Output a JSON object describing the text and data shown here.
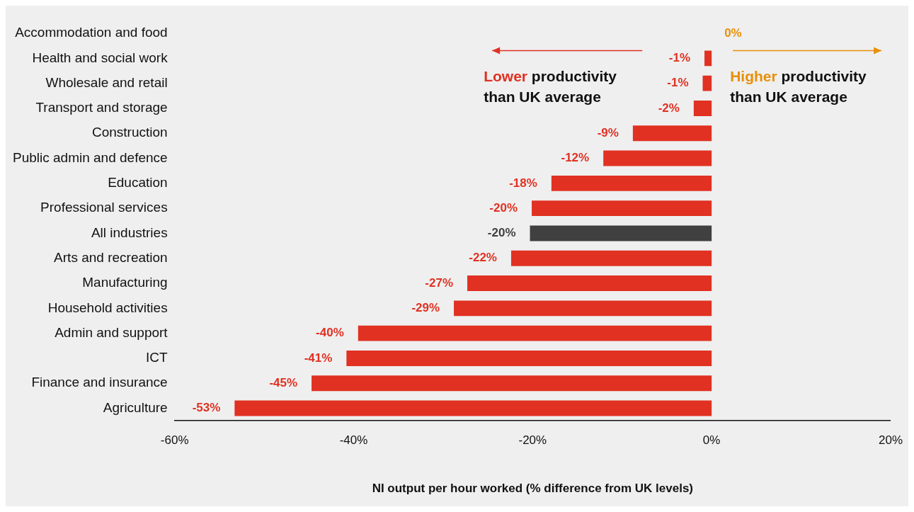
{
  "chart_data": {
    "type": "bar",
    "orientation": "horizontal",
    "xlabel": "NI output per hour worked (% difference from UK levels)",
    "categories": [
      "Accommodation and food",
      "Health and social work",
      "Wholesale and retail",
      "Transport and storage",
      "Construction",
      "Public admin and defence",
      "Education",
      "Professional services",
      "All industries",
      "Arts and recreation",
      "Manufacturing",
      "Household activities",
      "Admin and support",
      "ICT",
      "Finance and insurance",
      "Agriculture"
    ],
    "values": [
      0,
      -0.8,
      -1.0,
      -2.0,
      -8.8,
      -12.1,
      -17.9,
      -20.1,
      -20.3,
      -22.4,
      -27.3,
      -28.8,
      -39.5,
      -40.8,
      -44.7,
      -53.3
    ],
    "value_labels": [
      "0%",
      "-1%",
      "-1%",
      "-2%",
      "-9%",
      "-12%",
      "-18%",
      "-20%",
      "-20%",
      "-22%",
      "-27%",
      "-29%",
      "-40%",
      "-41%",
      "-45%",
      "-53%"
    ],
    "colors": [
      "#e8900a",
      "#e03122",
      "#e03122",
      "#e03122",
      "#e03122",
      "#e03122",
      "#e03122",
      "#e03122",
      "#404040",
      "#e03122",
      "#e03122",
      "#e03122",
      "#e03122",
      "#e03122",
      "#e03122",
      "#e03122"
    ],
    "xlim": [
      -60,
      20
    ],
    "xticks": [
      {
        "value": -60,
        "label": "-60%"
      },
      {
        "value": -40,
        "label": "-40%"
      },
      {
        "value": -20,
        "label": "-20%"
      },
      {
        "value": 0,
        "label": "0%"
      },
      {
        "value": 20,
        "label": "20%"
      }
    ],
    "grid": false,
    "legend": false,
    "annotations": [
      "Lower productivity than UK average",
      "Higher productivity than UK average"
    ]
  }
}
